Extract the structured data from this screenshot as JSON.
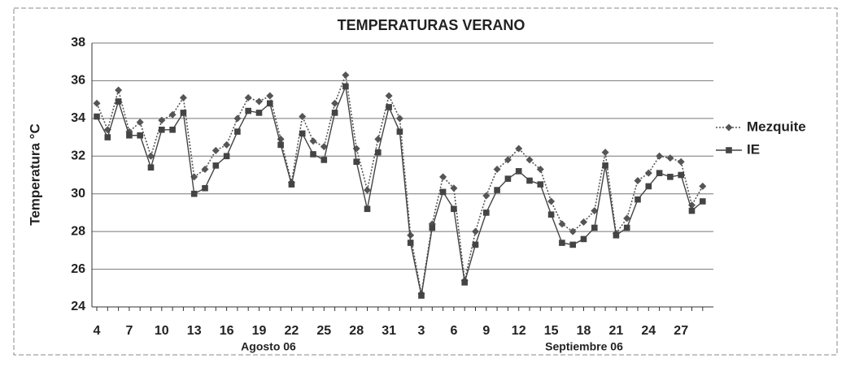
{
  "chart_data": {
    "type": "line",
    "title": "TEMPERATURAS VERANO",
    "y_label": "Temperatura °C",
    "group_labels": [
      "Agosto 06",
      "Septiembre 06"
    ],
    "categories": [
      "4",
      null,
      null,
      "7",
      null,
      null,
      "10",
      null,
      null,
      "13",
      null,
      null,
      "16",
      null,
      null,
      "19",
      null,
      null,
      "22",
      null,
      null,
      "25",
      null,
      null,
      "28",
      null,
      null,
      "31",
      null,
      null,
      "3",
      null,
      null,
      "6",
      null,
      null,
      "9",
      null,
      null,
      "12",
      null,
      null,
      "15",
      null,
      null,
      "18",
      null,
      null,
      "21",
      null,
      null,
      "24",
      null,
      null,
      "27",
      null,
      null
    ],
    "series": [
      {
        "name": "Mezquite",
        "color": "#555555",
        "marker": "diamond",
        "dash": "dotted",
        "values": [
          34.8,
          33.4,
          35.5,
          33.3,
          33.8,
          32.0,
          33.9,
          34.2,
          35.1,
          30.9,
          31.3,
          32.3,
          32.6,
          34.0,
          35.1,
          34.9,
          35.2,
          32.9,
          30.6,
          34.1,
          32.8,
          32.5,
          34.8,
          36.3,
          32.4,
          30.2,
          32.9,
          35.2,
          34.0,
          27.8,
          24.7,
          28.4,
          30.9,
          30.3,
          25.4,
          28.0,
          29.9,
          31.3,
          31.8,
          32.4,
          31.8,
          31.3,
          29.6,
          28.4,
          28.0,
          28.5,
          29.1,
          32.2,
          27.9,
          28.7,
          30.7,
          31.1,
          32.0,
          31.9,
          31.7,
          29.4,
          30.4
        ]
      },
      {
        "name": "IE",
        "color": "#444444",
        "marker": "square",
        "dash": "solid",
        "values": [
          34.1,
          33.0,
          34.9,
          33.1,
          33.1,
          31.4,
          33.4,
          33.4,
          34.3,
          30.0,
          30.3,
          31.5,
          32.0,
          33.3,
          34.4,
          34.3,
          34.8,
          32.6,
          30.5,
          33.2,
          32.1,
          31.8,
          34.3,
          35.7,
          31.7,
          29.2,
          32.2,
          34.6,
          33.3,
          27.4,
          24.6,
          28.2,
          30.1,
          29.2,
          25.3,
          27.3,
          29.0,
          30.2,
          30.8,
          31.2,
          30.7,
          30.5,
          28.9,
          27.4,
          27.3,
          27.6,
          28.2,
          31.5,
          27.8,
          28.2,
          29.7,
          30.4,
          31.1,
          30.9,
          31.0,
          29.1,
          29.6
        ]
      }
    ],
    "ylim": [
      24,
      38
    ],
    "yticks": [
      24,
      26,
      28,
      30,
      32,
      34,
      36,
      38
    ],
    "grid": true,
    "legend": "right"
  }
}
